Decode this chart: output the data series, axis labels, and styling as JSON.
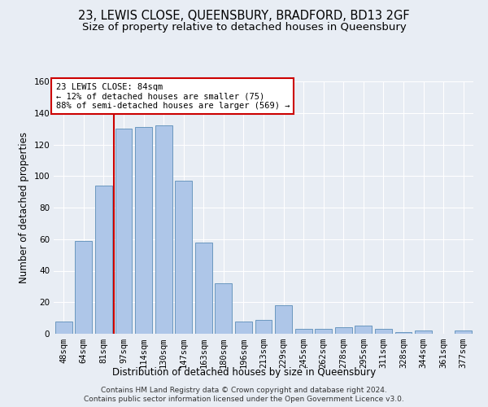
{
  "title": "23, LEWIS CLOSE, QUEENSBURY, BRADFORD, BD13 2GF",
  "subtitle": "Size of property relative to detached houses in Queensbury",
  "xlabel": "Distribution of detached houses by size in Queensbury",
  "ylabel": "Number of detached properties",
  "bar_labels": [
    "48sqm",
    "64sqm",
    "81sqm",
    "97sqm",
    "114sqm",
    "130sqm",
    "147sqm",
    "163sqm",
    "180sqm",
    "196sqm",
    "213sqm",
    "229sqm",
    "245sqm",
    "262sqm",
    "278sqm",
    "295sqm",
    "311sqm",
    "328sqm",
    "344sqm",
    "361sqm",
    "377sqm"
  ],
  "bar_values": [
    8,
    59,
    94,
    130,
    131,
    132,
    97,
    58,
    32,
    8,
    9,
    18,
    3,
    3,
    4,
    5,
    3,
    1,
    2,
    0,
    2
  ],
  "bar_color": "#aec6e8",
  "bar_edge_color": "#5b8db8",
  "vline_x_data": 2.5,
  "vline_color": "#cc0000",
  "ylim": [
    0,
    160
  ],
  "yticks": [
    0,
    20,
    40,
    60,
    80,
    100,
    120,
    140,
    160
  ],
  "annotation_title": "23 LEWIS CLOSE: 84sqm",
  "annotation_line1": "← 12% of detached houses are smaller (75)",
  "annotation_line2": "88% of semi-detached houses are larger (569) →",
  "annotation_box_color": "#ffffff",
  "annotation_box_edge": "#cc0000",
  "footer1": "Contains HM Land Registry data © Crown copyright and database right 2024.",
  "footer2": "Contains public sector information licensed under the Open Government Licence v3.0.",
  "bg_color": "#e8edf4",
  "plot_bg_color": "#e8edf4",
  "grid_color": "#ffffff",
  "title_fontsize": 10.5,
  "subtitle_fontsize": 9.5,
  "axis_label_fontsize": 8.5,
  "tick_fontsize": 7.5,
  "footer_fontsize": 6.5
}
